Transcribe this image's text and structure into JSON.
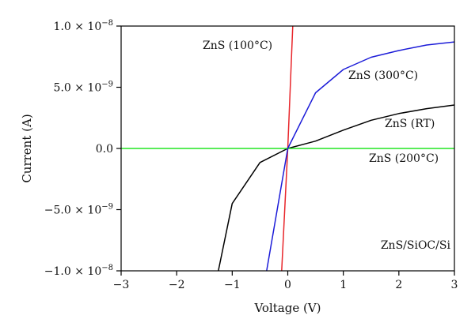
{
  "chart_data": {
    "type": "line",
    "title": "",
    "xlabel": "Voltage (V)",
    "ylabel": "Current (A)",
    "xlim": [
      -3,
      3
    ],
    "ylim": [
      -1e-08,
      1e-08
    ],
    "grid": false,
    "x_ticks": [
      {
        "value": -3,
        "label": "−3"
      },
      {
        "value": -2,
        "label": "−2"
      },
      {
        "value": -1,
        "label": "−1"
      },
      {
        "value": 0,
        "label": "0"
      },
      {
        "value": 1,
        "label": "1"
      },
      {
        "value": 2,
        "label": "2"
      },
      {
        "value": 3,
        "label": "3"
      }
    ],
    "y_ticks": [
      {
        "value": 1e-08,
        "label": "1.0 × 10",
        "exp": "−8"
      },
      {
        "value": 5e-09,
        "label": "5.0 × 10",
        "exp": "−9"
      },
      {
        "value": 0,
        "label": "0.0",
        "exp": ""
      },
      {
        "value": -5e-09,
        "label": "−5.0 × 10",
        "exp": "−9"
      },
      {
        "value": -1e-08,
        "label": "−1.0 × 10",
        "exp": "−8"
      }
    ],
    "series": [
      {
        "name": "ZnS (RT)",
        "color": "#000000",
        "points": [
          [
            -1.25,
            -1e-08
          ],
          [
            -1.0,
            -4.5e-09
          ],
          [
            -0.5,
            -1.15e-09
          ],
          [
            0,
            0
          ],
          [
            0.5,
            6e-10
          ],
          [
            1.0,
            1.5e-09
          ],
          [
            1.5,
            2.3e-09
          ],
          [
            2.0,
            2.85e-09
          ],
          [
            2.5,
            3.25e-09
          ],
          [
            3.0,
            3.55e-09
          ]
        ]
      },
      {
        "name": "ZnS (100°C)",
        "color": "#e8262b",
        "points": [
          [
            -0.11,
            -1e-08
          ],
          [
            0,
            0
          ],
          [
            0.09,
            1e-08
          ]
        ]
      },
      {
        "name": "ZnS (200°C)",
        "color": "#22e622",
        "points": [
          [
            -3,
            0
          ],
          [
            3,
            0
          ]
        ]
      },
      {
        "name": "ZnS (300°C)",
        "color": "#1c1cd8",
        "points": [
          [
            -0.38,
            -1e-08
          ],
          [
            0,
            0
          ],
          [
            0.5,
            4.55e-09
          ],
          [
            1.0,
            6.45e-09
          ],
          [
            1.5,
            7.45e-09
          ],
          [
            2.0,
            8e-09
          ],
          [
            2.5,
            8.45e-09
          ],
          [
            3.0,
            8.7e-09
          ]
        ]
      }
    ],
    "annotations": [
      {
        "text": "ZnS/SiOC/Si",
        "x": 2.3,
        "y": -8.2e-09
      }
    ]
  }
}
